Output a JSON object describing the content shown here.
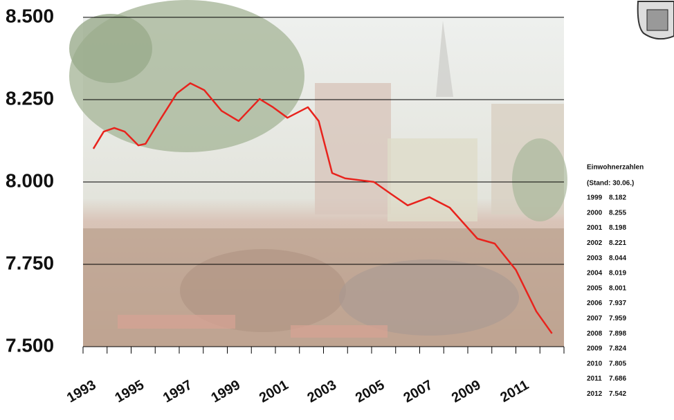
{
  "chart_data": {
    "type": "line",
    "x": [
      1993.43,
      1993.86,
      1994.3,
      1994.73,
      1995.3,
      1995.6,
      1996.17,
      1996.9,
      1997.46,
      1998.04,
      1998.76,
      1999.47,
      2000.34,
      2000.9,
      2001.5,
      2002.35,
      2002.8,
      2003.36,
      2003.9,
      2005.1,
      2005.8,
      2006.5,
      2007.4,
      2008.25,
      2009.4,
      2010.12,
      2011.0,
      2011.85,
      2012.5
    ],
    "series": [
      {
        "color": "#e8231d",
        "values": [
          8101,
          8153,
          8164,
          8153,
          8111,
          8116,
          8185,
          8269,
          8300,
          8279,
          8216,
          8185,
          8252,
          8227,
          8195,
          8227,
          8185,
          8027,
          8011,
          8000,
          7964,
          7929,
          7954,
          7922,
          7828,
          7813,
          7733,
          7607,
          7540
        ]
      }
    ],
    "xlim": [
      1993,
      2013
    ],
    "xticks": [
      1993,
      1995,
      1997,
      1999,
      2001,
      2003,
      2005,
      2007,
      2009,
      2011
    ],
    "xminorticks": [
      1994,
      1996,
      1998,
      2000,
      2002,
      2004,
      2006,
      2008,
      2010,
      2012,
      2013
    ],
    "ylim": [
      7500,
      8500
    ],
    "yticks": [
      {
        "value": 7500,
        "label": "7.500"
      },
      {
        "value": 7750,
        "label": "7.750"
      },
      {
        "value": 8000,
        "label": "8.000"
      },
      {
        "value": 8250,
        "label": "8.250"
      },
      {
        "value": 8500,
        "label": "8.500"
      }
    ],
    "grid": true
  },
  "table": {
    "title": "Einwohnerzahlen",
    "subtitle": "(Stand: 30.06.)",
    "rows": [
      [
        "1999",
        "8.182"
      ],
      [
        "2000",
        "8.255"
      ],
      [
        "2001",
        "8.198"
      ],
      [
        "2002",
        "8.221"
      ],
      [
        "2003",
        "8.044"
      ],
      [
        "2004",
        "8.019"
      ],
      [
        "2005",
        "8.001"
      ],
      [
        "2006",
        "7.937"
      ],
      [
        "2007",
        "7.959"
      ],
      [
        "2008",
        "7.898"
      ],
      [
        "2009",
        "7.824"
      ],
      [
        "2010",
        "7.805"
      ],
      [
        "2011",
        "7.686"
      ],
      [
        "2012",
        "7.542"
      ]
    ]
  }
}
